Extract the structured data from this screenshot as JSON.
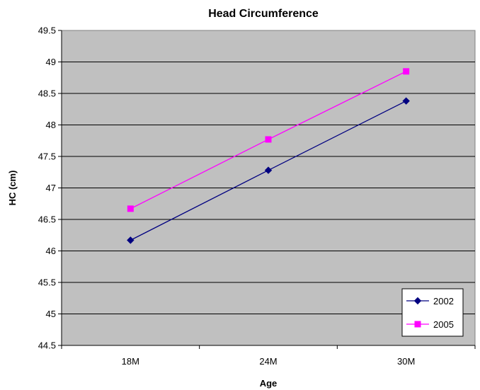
{
  "chart_data": {
    "type": "line",
    "title": "Head Circumference",
    "xlabel": "Age",
    "ylabel": "HC (cm)",
    "categories": [
      "18M",
      "24M",
      "30M"
    ],
    "ylim": [
      44.5,
      49.5
    ],
    "yticks": [
      44.5,
      45,
      45.5,
      46,
      46.5,
      47,
      47.5,
      48,
      48.5,
      49,
      49.5
    ],
    "ytick_labels": [
      "44.5",
      "45",
      "45.5",
      "46",
      "46.5",
      "47",
      "47.5",
      "48",
      "48.5",
      "49",
      "49.5"
    ],
    "grid": "horizontal",
    "plot_background": "#c0c0c0",
    "legend_position": "bottom-right",
    "series": [
      {
        "name": "2002",
        "values": [
          46.17,
          47.28,
          48.38
        ],
        "color": "#000080",
        "marker": "diamond"
      },
      {
        "name": "2005",
        "values": [
          46.67,
          47.77,
          48.85
        ],
        "color": "#ff00ff",
        "marker": "square"
      }
    ]
  }
}
